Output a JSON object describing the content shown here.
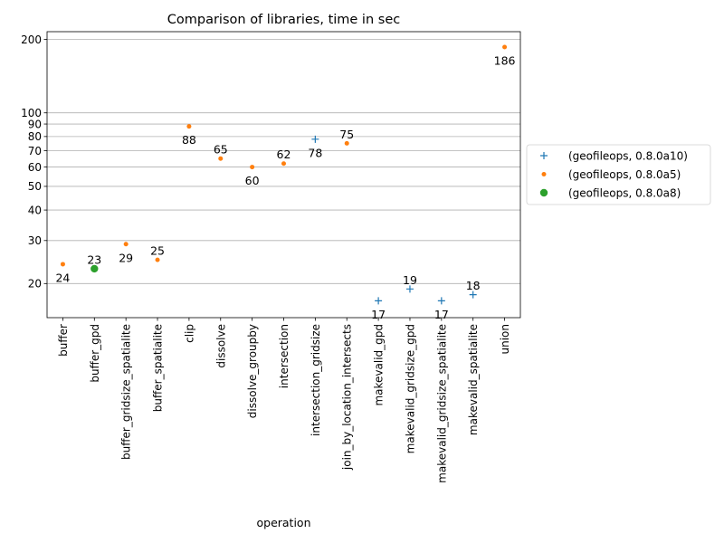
{
  "chart_data": {
    "type": "scatter",
    "title": "Comparison of libraries, time in sec",
    "xlabel": "operation",
    "ylabel": "",
    "yscale": "log",
    "ylim": [
      14.5,
      215
    ],
    "grid": "y",
    "legend_position": "outside-right",
    "categories": [
      "buffer",
      "buffer_gpd",
      "buffer_gridsize_spatialite",
      "buffer_spatialite",
      "clip",
      "dissolve",
      "dissolve_groupby",
      "intersection",
      "intersection_gridsize",
      "join_by_location_intersects",
      "makevalid_gpd",
      "makevalid_gridsize_gpd",
      "makevalid_gridsize_spatialite",
      "makevalid_spatialite",
      "union"
    ],
    "yticks": [
      20,
      30,
      40,
      50,
      60,
      70,
      80,
      90,
      100,
      200
    ],
    "series": [
      {
        "name": "(geofileops, 0.8.0a10)",
        "marker": "plus",
        "color": "#1f77b4",
        "points": [
          {
            "x": "intersection_gridsize",
            "y": 78,
            "label": "78"
          },
          {
            "x": "makevalid_gpd",
            "y": 17,
            "label": "17"
          },
          {
            "x": "makevalid_gridsize_gpd",
            "y": 19,
            "label": "19"
          },
          {
            "x": "makevalid_gridsize_spatialite",
            "y": 17,
            "label": "17"
          },
          {
            "x": "makevalid_spatialite",
            "y": 18,
            "label": "18"
          }
        ]
      },
      {
        "name": "(geofileops, 0.8.0a5)",
        "marker": "point",
        "color": "#ff7f0e",
        "points": [
          {
            "x": "buffer",
            "y": 24,
            "label": "24"
          },
          {
            "x": "buffer_gridsize_spatialite",
            "y": 29,
            "label": "29"
          },
          {
            "x": "buffer_spatialite",
            "y": 25,
            "label": "25"
          },
          {
            "x": "clip",
            "y": 88,
            "label": "88"
          },
          {
            "x": "dissolve",
            "y": 65,
            "label": "65"
          },
          {
            "x": "dissolve_groupby",
            "y": 60,
            "label": "60"
          },
          {
            "x": "intersection",
            "y": 62,
            "label": "62"
          },
          {
            "x": "join_by_location_intersects",
            "y": 75,
            "label": "75"
          },
          {
            "x": "union",
            "y": 186,
            "label": "186"
          }
        ]
      },
      {
        "name": "(geofileops, 0.8.0a8)",
        "marker": "circle",
        "color": "#2ca02c",
        "points": [
          {
            "x": "buffer_gpd",
            "y": 23,
            "label": "23"
          }
        ]
      }
    ]
  }
}
